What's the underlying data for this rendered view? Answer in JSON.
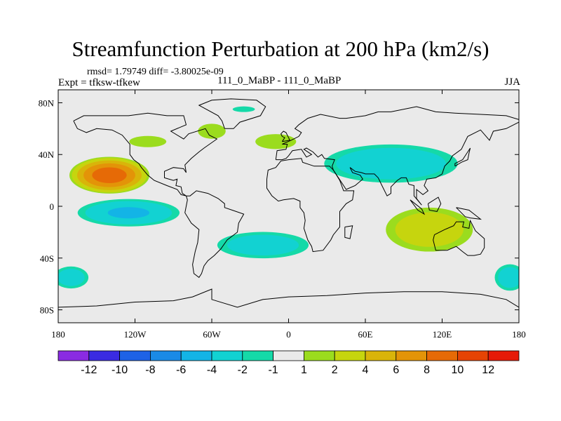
{
  "page": {
    "title": "Streamfunction Perturbation at 200 hPa (km2/s)",
    "stats": "rmsd= 1.79749  diff= -3.80025e-09",
    "experiment": "Expt = tfksw-tfkew",
    "center_label": "111_0_MaBP - 111_0_MaBP",
    "season": "JJA"
  },
  "colors": {
    "land_outline": "#000000",
    "neutral_fill": "#eaeaea"
  },
  "chart_data": {
    "type": "heatmap",
    "title": "Streamfunction Perturbation at 200 hPa (km2/s)",
    "xlabel": "",
    "ylabel": "",
    "xlim": [
      -180,
      180
    ],
    "ylim": [
      -90,
      90
    ],
    "x_ticks": [
      {
        "value": -180,
        "label": "180"
      },
      {
        "value": -120,
        "label": "120W"
      },
      {
        "value": -60,
        "label": "60W"
      },
      {
        "value": 0,
        "label": "0"
      },
      {
        "value": 60,
        "label": "60E"
      },
      {
        "value": 120,
        "label": "120E"
      },
      {
        "value": 180,
        "label": "180"
      }
    ],
    "y_ticks": [
      {
        "value": 80,
        "label": "80N"
      },
      {
        "value": 40,
        "label": "40N"
      },
      {
        "value": 0,
        "label": "0"
      },
      {
        "value": -40,
        "label": "40S"
      },
      {
        "value": -80,
        "label": "80S"
      }
    ],
    "colorbar": {
      "levels": [
        "-12",
        "-10",
        "-8",
        "-6",
        "-4",
        "-2",
        "-1",
        "1",
        "2",
        "4",
        "6",
        "8",
        "10",
        "12"
      ],
      "colors": [
        "#8a2be2",
        "#3a2be2",
        "#1e62e6",
        "#1a8ae6",
        "#13b4e6",
        "#12d2d2",
        "#15d9a8",
        "#eaeaea",
        "#9bdc1e",
        "#c6d50e",
        "#d9b40a",
        "#e39408",
        "#e66a06",
        "#e64404",
        "#e61a08"
      ]
    },
    "features": [
      {
        "name": "north-pacific-positive",
        "lon": -140,
        "lat": 24,
        "rlon": 33,
        "rlat": 15,
        "value": 9
      },
      {
        "name": "tropical-pacific-negative",
        "lon": -125,
        "lat": -5,
        "rlon": 45,
        "rlat": 12,
        "value": -4
      },
      {
        "name": "south-atlantic-negative",
        "lon": -20,
        "lat": -30,
        "rlon": 42,
        "rlat": 12,
        "value": -3
      },
      {
        "name": "asia-negative",
        "lon": 80,
        "lat": 33,
        "rlon": 60,
        "rlat": 17,
        "value": -3.5
      },
      {
        "name": "indian-ocean-positive",
        "lon": 110,
        "lat": -18,
        "rlon": 40,
        "rlat": 20,
        "value": 3
      },
      {
        "name": "south-pacific-negative",
        "lon": -170,
        "lat": -55,
        "rlon": 16,
        "rlat": 10,
        "value": -3
      },
      {
        "name": "southeast-pacific-negative",
        "lon": 173,
        "lat": -55,
        "rlon": 14,
        "rlat": 12,
        "value": -3
      },
      {
        "name": "north-america-positive",
        "lon": -60,
        "lat": 58,
        "rlon": 15,
        "rlat": 8,
        "value": 1.5
      },
      {
        "name": "north-atlantic-positive",
        "lon": -10,
        "lat": 50,
        "rlon": 22,
        "rlat": 8,
        "value": 1.5
      },
      {
        "name": "north-pacific-positive-small",
        "lon": -110,
        "lat": 50,
        "rlon": 20,
        "rlat": 6,
        "value": 1.5
      },
      {
        "name": "arctic-negative",
        "lon": -35,
        "lat": 75,
        "rlon": 12,
        "rlat": 3,
        "value": -1.5
      }
    ]
  }
}
